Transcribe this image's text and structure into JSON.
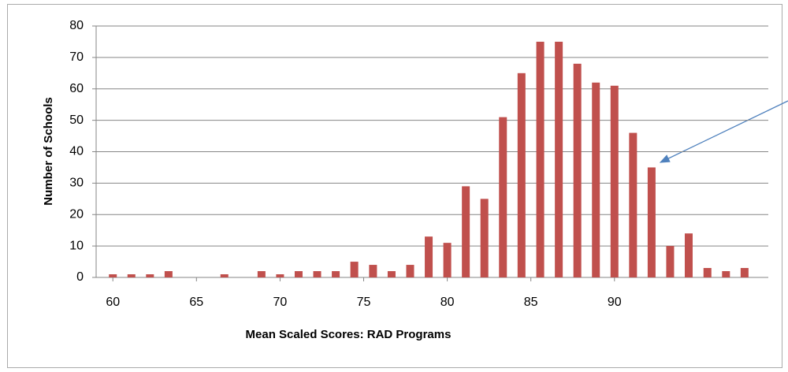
{
  "chart_data": {
    "type": "bar",
    "x_label": "Mean Scaled Scores: RAD Programs",
    "y_label": "Number of Schools",
    "x": [
      60,
      61.11,
      62.22,
      63.33,
      64.44,
      65.56,
      66.67,
      67.78,
      68.89,
      70,
      71.11,
      72.22,
      73.33,
      74.44,
      75.56,
      76.67,
      77.78,
      78.89,
      80,
      81.11,
      82.22,
      83.33,
      84.44,
      85.56,
      86.67,
      87.78,
      88.89,
      90,
      91.11,
      92.22,
      93.33,
      94.44,
      95.56,
      96.67,
      97.78
    ],
    "values": [
      1,
      1,
      1,
      2,
      0,
      0,
      1,
      0,
      2,
      1,
      2,
      2,
      2,
      5,
      4,
      2,
      4,
      13,
      11,
      29,
      25,
      51,
      65,
      75,
      75,
      68,
      62,
      61,
      46,
      35,
      10,
      14,
      3,
      2,
      3
    ],
    "color": "#c0504d",
    "xlim": [
      59,
      99.2
    ],
    "xticks": [
      60,
      65,
      70,
      75,
      80,
      85,
      90
    ],
    "ylim": [
      0,
      80
    ],
    "yticks": [
      0,
      10,
      20,
      30,
      40,
      50,
      60,
      70,
      80
    ],
    "grid": true
  }
}
